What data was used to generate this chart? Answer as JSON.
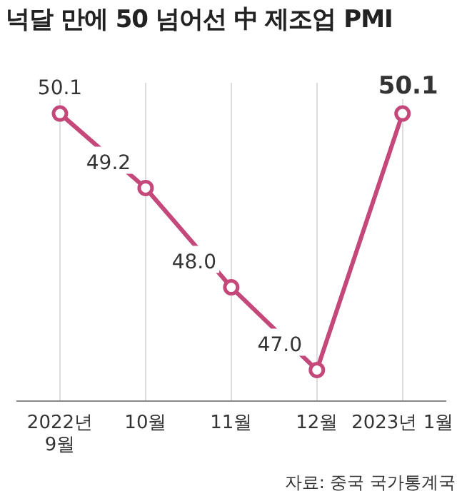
{
  "chart_data": {
    "type": "line",
    "title": "넉달 만에 50 넘어선 中 제조업 PMI",
    "categories": [
      "2022년\n9월",
      "10월",
      "11월",
      "12월",
      "2023년 1월"
    ],
    "series": [
      {
        "color": "#c4487a",
        "values": [
          50.1,
          49.2,
          48.0,
          47.0,
          50.1
        ],
        "value_labels": [
          "50.1",
          "49.2",
          "48.0",
          "47.0",
          "50.1"
        ]
      }
    ],
    "grid": "x",
    "marker": "circle",
    "legend": false,
    "annotations": [
      "자료: 중국 국가통계국"
    ]
  }
}
